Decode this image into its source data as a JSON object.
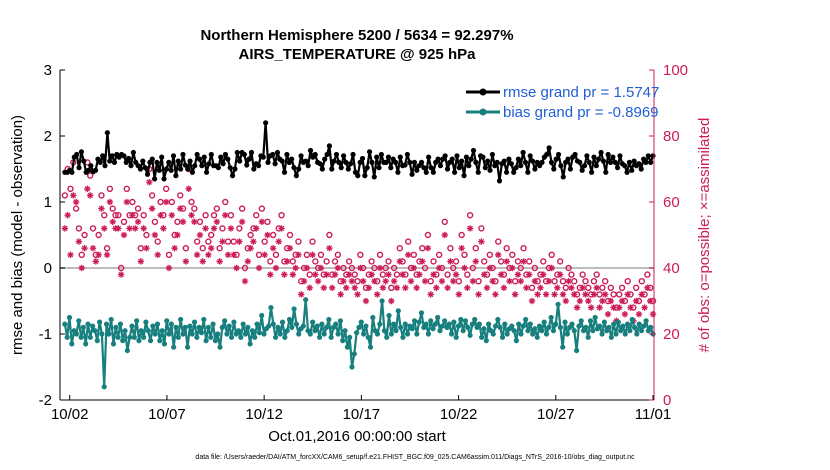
{
  "chart_data": {
    "type": "line",
    "title": "Northern Hemisphere 5200 / 5634 = 92.297%",
    "subtitle": "AIRS_TEMPERATURE @ 925 hPa",
    "xlabel": "Oct.01,2016 00:00:00 start",
    "ylabel": "rmse and bias (model - observation)",
    "y2label": "# of obs: o=possible; ×=assimilated",
    "footer": "data file: /Users/raeder/DAI/ATM_forcXX/CAM6_setup/f.e21.FHIST_BGC.f09_025.CAM6assim.011/Diags_NTrS_2016-10/obs_diag_output.nc",
    "xlim": [
      1.5,
      32.05
    ],
    "ylim": [
      -2,
      3
    ],
    "y2lim": [
      0,
      100
    ],
    "x_tick_values": [
      2,
      7,
      12,
      17,
      22,
      27,
      32
    ],
    "x_tick_labels": [
      "10/02",
      "10/07",
      "10/12",
      "10/17",
      "10/22",
      "10/27",
      "11/01"
    ],
    "y_ticks": [
      "-2",
      "-1",
      "0",
      "1",
      "2",
      "3"
    ],
    "y2_ticks": [
      "0",
      "20",
      "40",
      "60",
      "80",
      "100"
    ],
    "legend_position": "top-right",
    "series": [
      {
        "name": "rmse",
        "legend": "rmse grand pr = 1.5747",
        "color": "#000000",
        "axis": "left",
        "style": "line-dots",
        "values": [
          1.45,
          1.45,
          1.48,
          1.45,
          1.68,
          1.72,
          1.52,
          1.76,
          1.62,
          1.45,
          1.48,
          1.55,
          1.46,
          1.48,
          1.65,
          1.6,
          1.7,
          1.55,
          2.05,
          1.62,
          1.7,
          1.6,
          1.72,
          1.68,
          1.72,
          1.7,
          1.6,
          1.66,
          1.55,
          1.75,
          1.6,
          1.55,
          1.5,
          1.62,
          1.52,
          1.42,
          1.6,
          1.65,
          1.35,
          1.6,
          1.48,
          1.68,
          1.35,
          1.5,
          1.6,
          1.48,
          1.7,
          1.4,
          1.62,
          1.5,
          1.72,
          1.56,
          1.5,
          1.62,
          1.45,
          1.55,
          1.72,
          1.65,
          1.55,
          1.68,
          1.45,
          1.58,
          1.72,
          1.55,
          1.55,
          1.52,
          1.68,
          1.58,
          1.72,
          1.65,
          1.52,
          1.4,
          1.5,
          1.75,
          1.62,
          1.75,
          1.72,
          1.56,
          1.65,
          1.75,
          1.5,
          1.58,
          1.55,
          1.7,
          1.68,
          2.2,
          1.6,
          1.7,
          1.72,
          1.58,
          1.75,
          1.65,
          1.62,
          1.45,
          1.72,
          1.6,
          1.65,
          1.52,
          1.4,
          1.5,
          1.7,
          1.6,
          1.62,
          1.55,
          1.78,
          1.68,
          1.72,
          1.6,
          1.58,
          1.5,
          1.65,
          1.72,
          1.85,
          1.5,
          1.62,
          1.72,
          1.6,
          1.52,
          1.7,
          1.6,
          1.5,
          1.58,
          1.72,
          1.45,
          1.4,
          1.6,
          1.66,
          1.4,
          1.52,
          1.76,
          1.6,
          1.38,
          1.68,
          1.52,
          1.72,
          1.6,
          1.6,
          1.68,
          1.52,
          1.65,
          1.6,
          1.45,
          1.68,
          1.55,
          1.56,
          1.72,
          1.6,
          1.42,
          1.6,
          1.48,
          1.55,
          1.6,
          1.52,
          1.45,
          1.68,
          1.52,
          1.45,
          1.6,
          1.65,
          1.55,
          1.65,
          1.7,
          1.5,
          1.6,
          1.65,
          1.45,
          1.7,
          1.52,
          1.62,
          1.4,
          1.68,
          1.55,
          1.65,
          1.78,
          1.6,
          1.45,
          1.7,
          1.68,
          1.52,
          1.62,
          1.48,
          1.72,
          1.55,
          1.6,
          1.32,
          1.58,
          1.62,
          1.45,
          1.65,
          1.58,
          1.45,
          1.52,
          1.65,
          1.55,
          1.75,
          1.6,
          1.45,
          1.7,
          1.62,
          1.5,
          1.6,
          1.55,
          1.6,
          1.68,
          1.72,
          1.82,
          1.6,
          1.5,
          1.65,
          1.72,
          1.55,
          1.38,
          1.6,
          1.65,
          1.5,
          1.68,
          1.72,
          1.62,
          1.6,
          1.48,
          1.55,
          1.7,
          1.6,
          1.45,
          1.68,
          1.55,
          1.65,
          1.75,
          1.62,
          1.45,
          1.72,
          1.6,
          1.68,
          1.6,
          1.52,
          1.7,
          1.58,
          1.55,
          1.45,
          1.6,
          1.48,
          1.62,
          1.55,
          1.58,
          1.5,
          1.65,
          1.6,
          1.7,
          1.6,
          1.7
        ]
      },
      {
        "name": "bias",
        "legend": "bias grand pr = -0.8969",
        "color": "#17807f",
        "axis": "left",
        "style": "line-dots",
        "values": [
          -0.85,
          -1.05,
          -0.75,
          -1.15,
          -0.95,
          -1.0,
          -0.8,
          -1.05,
          -0.9,
          -1.15,
          -0.85,
          -1.05,
          -0.88,
          -0.95,
          -1.1,
          -0.82,
          -1.0,
          -1.8,
          -0.85,
          -1.0,
          -0.78,
          -1.15,
          -0.9,
          -1.05,
          -0.85,
          -1.1,
          -0.95,
          -1.25,
          -1.05,
          -0.88,
          -1.05,
          -0.8,
          -1.1,
          -0.95,
          -1.05,
          -0.82,
          -0.95,
          -1.1,
          -0.88,
          -1.0,
          -0.85,
          -1.1,
          -0.95,
          -1.15,
          -0.8,
          -1.0,
          -0.85,
          -1.2,
          -0.9,
          -1.05,
          -0.78,
          -1.0,
          -0.9,
          -1.2,
          -0.88,
          -1.0,
          -0.82,
          -1.05,
          -0.9,
          -0.98,
          -0.78,
          -1.1,
          -0.9,
          -1.05,
          -0.85,
          -1.1,
          -1.0,
          -1.2,
          -0.9,
          -0.8,
          -1.0,
          -0.88,
          -1.05,
          -0.82,
          -1.0,
          -0.95,
          -1.05,
          -0.85,
          -1.0,
          -0.9,
          -1.15,
          -0.95,
          -1.05,
          -0.85,
          -0.98,
          -0.72,
          -1.0,
          -0.92,
          -0.88,
          -0.6,
          -0.85,
          -1.05,
          -0.9,
          -1.0,
          -0.82,
          -1.05,
          -0.95,
          -0.78,
          -0.9,
          -0.62,
          -0.85,
          -1.0,
          -0.92,
          -0.88,
          -0.48,
          -0.95,
          -1.0,
          -0.82,
          -0.95,
          -0.88,
          -1.05,
          -0.85,
          -1.0,
          -0.9,
          -0.78,
          -1.05,
          -0.9,
          -0.85,
          -1.0,
          -0.8,
          -1.1,
          -0.95,
          -1.2,
          -1.05,
          -1.5,
          -1.3,
          -0.98,
          -0.9,
          -0.82,
          -1.0,
          -0.88,
          -1.05,
          -1.2,
          -0.75,
          -0.95,
          -1.0,
          -0.85,
          -0.5,
          -0.95,
          -1.05,
          -0.72,
          -1.0,
          -0.85,
          -0.95,
          -0.65,
          -0.9,
          -1.05,
          -0.85,
          -1.0,
          -0.88,
          -0.92,
          -0.8,
          -1.0,
          -0.82,
          -0.68,
          -0.9,
          -0.85,
          -1.0,
          -0.8,
          -0.92,
          -0.85,
          -0.75,
          -0.95,
          -0.88,
          -0.8,
          -0.9,
          -0.85,
          -1.0,
          -0.82,
          -1.05,
          -0.88,
          -0.78,
          -0.95,
          -0.8,
          -0.9,
          -1.02,
          -0.85,
          -0.78,
          -0.9,
          -0.85,
          -1.05,
          -0.92,
          -1.1,
          -0.85,
          -0.95,
          -1.0,
          -0.88,
          -0.78,
          -0.9,
          -1.05,
          -0.85,
          -1.0,
          -0.92,
          -0.88,
          -0.95,
          -1.1,
          -0.85,
          -1.0,
          -0.88,
          -0.78,
          -0.95,
          -0.85,
          -1.0,
          -0.92,
          -1.05,
          -0.88,
          -0.95,
          -0.82,
          -1.0,
          -0.9,
          -0.75,
          -0.95,
          -0.85,
          -0.55,
          -0.9,
          -1.2,
          -0.82,
          -1.0,
          -0.9,
          -0.85,
          -0.95,
          -1.25,
          -0.88,
          -0.8,
          -0.95,
          -0.9,
          -1.05,
          -0.8,
          -0.95,
          -0.75,
          -0.92,
          -0.88,
          -1.0,
          -0.82,
          -0.95,
          -0.9,
          -1.05,
          -0.85,
          -1.0,
          -0.82,
          -0.95,
          -0.88,
          -1.0,
          -0.85,
          -0.95,
          -0.78,
          -0.9,
          -1.0,
          -0.85,
          -0.95,
          -0.88,
          -0.8,
          -0.95,
          -0.9,
          -1.0
        ]
      },
      {
        "name": "possible",
        "legend": "",
        "color": "#cc1c5a",
        "axis": "right",
        "style": "circles",
        "values": [
          62,
          70,
          64,
          72,
          58,
          52,
          44,
          50,
          72,
          68,
          52,
          44,
          50,
          62,
          56,
          46,
          64,
          58,
          56,
          56,
          40,
          54,
          64,
          56,
          60,
          56,
          58,
          46,
          56,
          50,
          70,
          62,
          54,
          48,
          60,
          56,
          64,
          44,
          60,
          50,
          54,
          62,
          58,
          46,
          70,
          60,
          58,
          48,
          54,
          46,
          56,
          48,
          50,
          56,
          58,
          46,
          52,
          60,
          48,
          56,
          48,
          44,
          52,
          58,
          40,
          46,
          50,
          52,
          56,
          44,
          58,
          48,
          54,
          42,
          50,
          44,
          52,
          56,
          42,
          46,
          50,
          42,
          44,
          48,
          36,
          40,
          44,
          38,
          48,
          42,
          40,
          44,
          38,
          42,
          50,
          38,
          42,
          44,
          36,
          40,
          38,
          42,
          40,
          38,
          36,
          44,
          40,
          34,
          38,
          42,
          40,
          36,
          44,
          38,
          40,
          42,
          34,
          40,
          38,
          46,
          42,
          38,
          48,
          40,
          44,
          38,
          42,
          46,
          40,
          50,
          36,
          42,
          38,
          44,
          40,
          54,
          38,
          46,
          40,
          42,
          36,
          50,
          44,
          38,
          56,
          40,
          46,
          36,
          52,
          42,
          38,
          44,
          40,
          36,
          48,
          42,
          38,
          46,
          40,
          44,
          36,
          42,
          40,
          46,
          38,
          42,
          34,
          40,
          36,
          38,
          42,
          36,
          40,
          44,
          36,
          38,
          42,
          36,
          34,
          40,
          38,
          36,
          32,
          34,
          38,
          36,
          34,
          32,
          36,
          38,
          32,
          34,
          36,
          30,
          34,
          32,
          28,
          32,
          34,
          30,
          36,
          32,
          28,
          34,
          30,
          36,
          32,
          38,
          34,
          30
        ]
      },
      {
        "name": "assimilated",
        "legend": "",
        "color": "#cc1c5a",
        "axis": "right",
        "style": "asterisks",
        "values": [
          52,
          56,
          44,
          62,
          60,
          48,
          40,
          46,
          64,
          62,
          46,
          42,
          44,
          58,
          52,
          44,
          60,
          54,
          52,
          52,
          38,
          50,
          60,
          52,
          56,
          52,
          54,
          42,
          52,
          46,
          66,
          58,
          50,
          44,
          56,
          52,
          60,
          40,
          56,
          46,
          50,
          58,
          54,
          42,
          64,
          56,
          54,
          44,
          50,
          42,
          52,
          44,
          46,
          52,
          54,
          42,
          48,
          56,
          44,
          52,
          44,
          40,
          48,
          54,
          36,
          42,
          46,
          48,
          52,
          40,
          54,
          44,
          50,
          38,
          46,
          40,
          48,
          52,
          38,
          42,
          46,
          38,
          40,
          44,
          32,
          36,
          40,
          34,
          44,
          38,
          36,
          40,
          34,
          38,
          46,
          34,
          38,
          40,
          32,
          36,
          34,
          38,
          36,
          34,
          32,
          40,
          36,
          30,
          34,
          38,
          36,
          32,
          40,
          34,
          36,
          38,
          30,
          36,
          34,
          42,
          38,
          34,
          44,
          36,
          40,
          34,
          38,
          42,
          36,
          46,
          32,
          38,
          34,
          40,
          36,
          50,
          34,
          42,
          36,
          38,
          32,
          46,
          40,
          34,
          52,
          36,
          42,
          32,
          48,
          38,
          34,
          40,
          36,
          32,
          44,
          38,
          34,
          42,
          36,
          40,
          32,
          38,
          36,
          42,
          34,
          38,
          30,
          36,
          32,
          34,
          38,
          32,
          36,
          40,
          32,
          34,
          38,
          32,
          30,
          36,
          34,
          32,
          28,
          30,
          34,
          32,
          30,
          28,
          32,
          34,
          28,
          30,
          32,
          26,
          30,
          28,
          24,
          28,
          30,
          26,
          32,
          28,
          24,
          30,
          26,
          32,
          28,
          34,
          30,
          26
        ]
      }
    ]
  }
}
